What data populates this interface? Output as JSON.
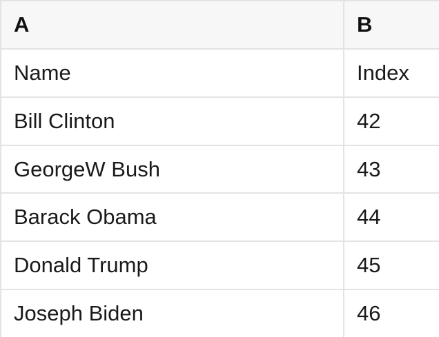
{
  "colors": {
    "border": "#e3e3e3",
    "header_background": "#f7f7f7",
    "background": "#ffffff",
    "text": "#1a1a1a",
    "header_text": "#111111"
  },
  "spreadsheet": {
    "column_letters": {
      "a": "A",
      "b": "B"
    },
    "field_headers": {
      "a": "Name",
      "b": "Index"
    },
    "rows": [
      {
        "a": "Bill Clinton",
        "b": "42"
      },
      {
        "a": "GeorgeW Bush",
        "b": "43"
      },
      {
        "a": "Barack Obama",
        "b": "44"
      },
      {
        "a": "Donald Trump",
        "b": "45"
      },
      {
        "a": "Joseph Biden",
        "b": "46"
      }
    ]
  }
}
